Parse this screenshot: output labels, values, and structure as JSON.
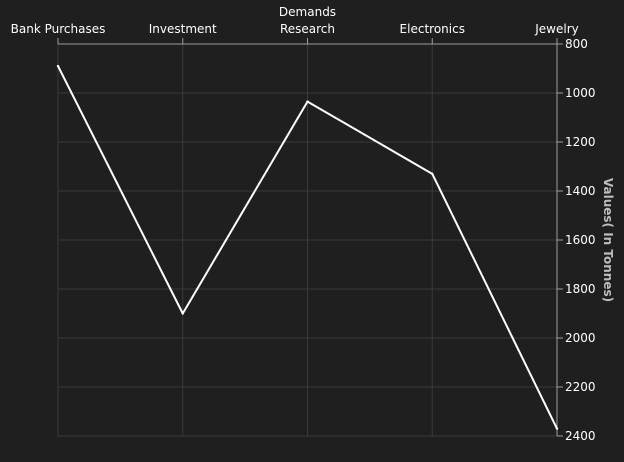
{
  "chart_data": {
    "type": "line",
    "categories": [
      "Bank Purchases",
      "Investment",
      "Demands Research",
      "Electronics",
      "Jewelry"
    ],
    "category_label_lines": [
      [
        "Bank Purchases"
      ],
      [
        "Investment"
      ],
      [
        "Demands",
        "Research"
      ],
      [
        "Electronics"
      ],
      [
        "Jewelry"
      ]
    ],
    "values": [
      890,
      1900,
      1035,
      1330,
      2370
    ],
    "xlabel": "",
    "ylabel": "Values( In Tonnes)",
    "ylim": [
      800,
      2400
    ],
    "y_ticks": [
      "800",
      "1000",
      "1200",
      "1400",
      "1600",
      "1800",
      "2000",
      "2200",
      "2400"
    ],
    "y_reversed": true,
    "x_axis_position": "top",
    "y_axis_position": "right",
    "grid": true,
    "colors": {
      "background": "#1f1f1f",
      "line": "#ffffff",
      "grid": "#3a3a3a",
      "axis": "#9e9e9e",
      "text": "#ffffff",
      "axis_title": "#bdbdbd"
    }
  }
}
